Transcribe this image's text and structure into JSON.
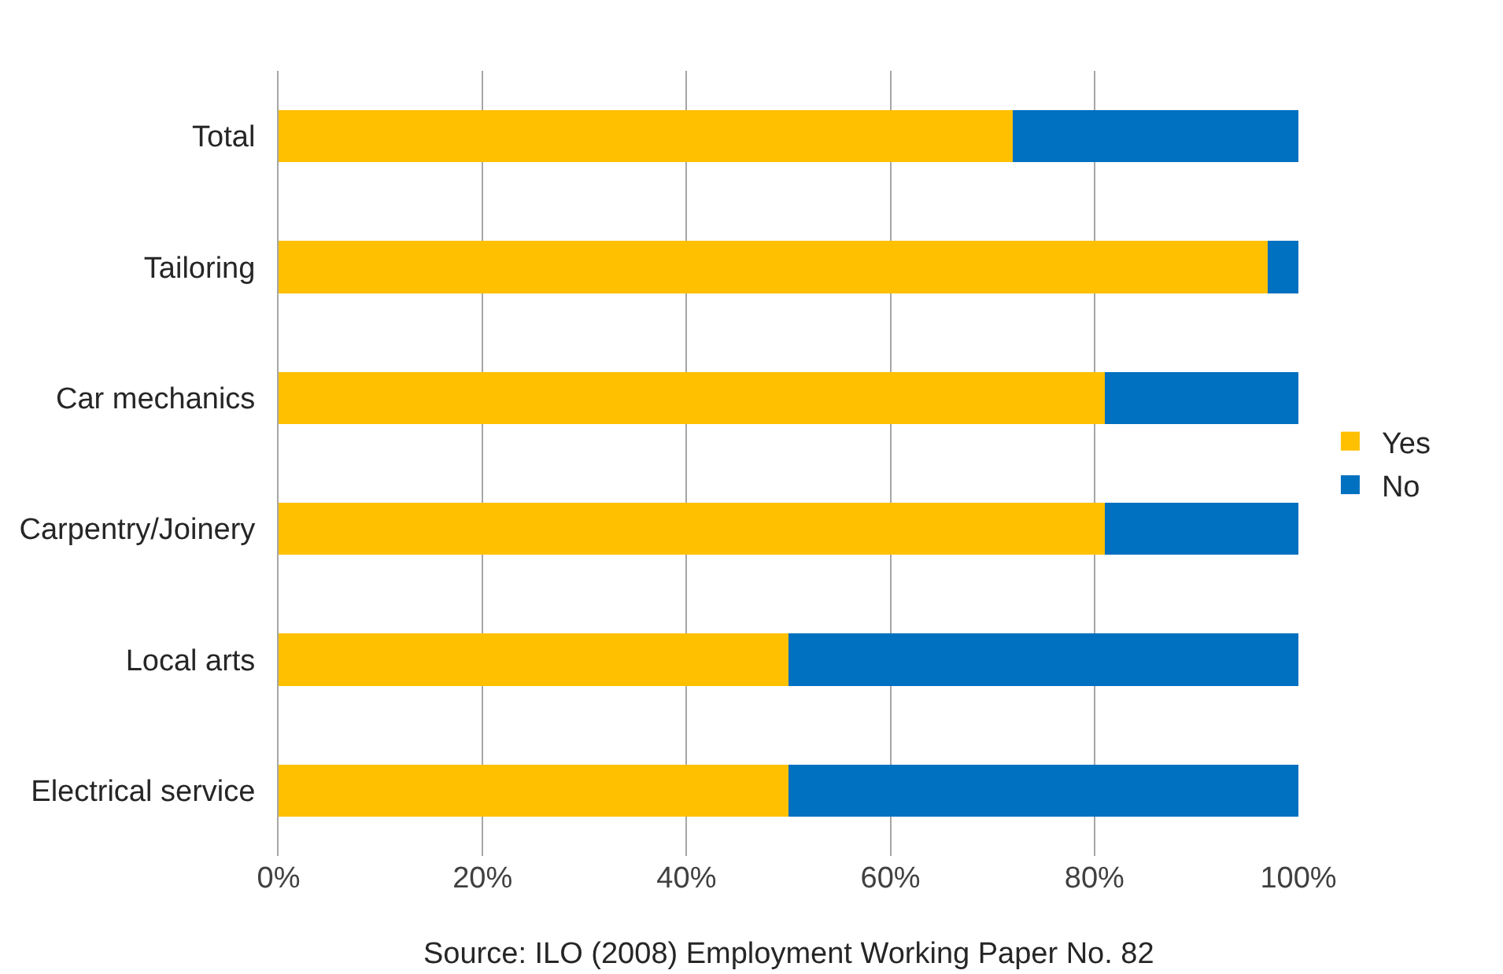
{
  "chart_data": {
    "type": "bar",
    "orientation": "horizontal",
    "stacked": true,
    "categories": [
      "Total",
      "Tailoring",
      "Car mechanics",
      "Carpentry/Joinery",
      "Local arts",
      "Electrical service"
    ],
    "series": [
      {
        "name": "Yes",
        "color": "#ffc000",
        "values": [
          72,
          97,
          81,
          81,
          50,
          50
        ]
      },
      {
        "name": "No",
        "color": "#0070c0",
        "values": [
          28,
          3,
          19,
          19,
          50,
          50
        ]
      }
    ],
    "xlim": [
      0,
      100
    ],
    "xticks": [
      {
        "value": 0,
        "label": "0%"
      },
      {
        "value": 20,
        "label": "20%"
      },
      {
        "value": 40,
        "label": "40%"
      },
      {
        "value": 60,
        "label": "60%"
      },
      {
        "value": 80,
        "label": "80%"
      },
      {
        "value": 100,
        "label": "100%"
      }
    ],
    "grid": "x",
    "legend": "right",
    "annotations": [
      "Source: ILO (2008) Employment Working Paper No. 82"
    ]
  }
}
